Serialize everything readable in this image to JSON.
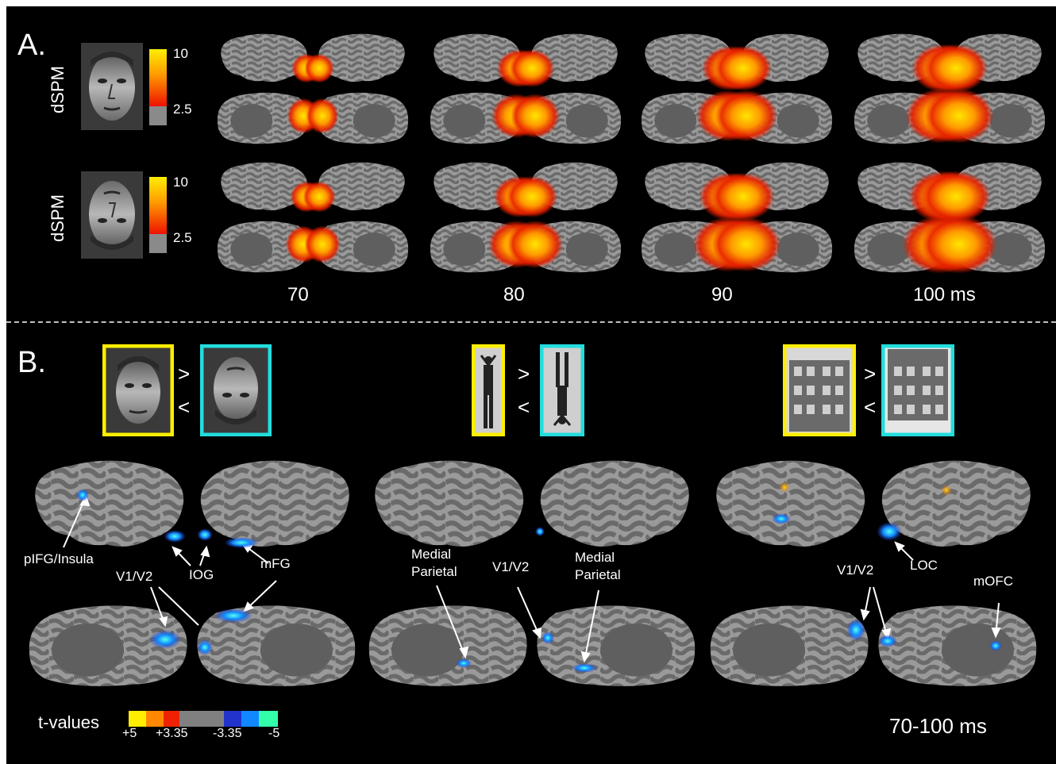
{
  "panel_a": {
    "label": "A.",
    "rows": [
      {
        "measure": "dSPM",
        "colorbar_max": "10",
        "colorbar_min": "2.5",
        "stimulus": "face-upright-photo"
      },
      {
        "measure": "dSPM",
        "colorbar_max": "10",
        "colorbar_min": "2.5",
        "stimulus": "face-inverted-photo"
      }
    ],
    "timepoints": [
      "70",
      "80",
      "90",
      "100 ms"
    ],
    "activation_level": [
      [
        0.2,
        0.45,
        0.65,
        0.75
      ],
      [
        0.25,
        0.55,
        0.75,
        0.85
      ]
    ]
  },
  "panel_b": {
    "label": "B.",
    "comparisons": [
      {
        "upright": "face-upright-photo",
        "inverted": "face-inverted-photo",
        "greater": ">",
        "less": "<"
      },
      {
        "upright": "body-upright-photo",
        "inverted": "body-inverted-photo",
        "greater": ">",
        "less": "<"
      },
      {
        "upright": "house-upright-photo",
        "inverted": "house-inverted-photo",
        "greater": ">",
        "less": "<"
      }
    ],
    "annotations": {
      "faces": [
        "pIFG/Insula",
        "IOG",
        "mFG",
        "V1/V2"
      ],
      "bodies_medial_parietal_1": [
        "Medial",
        "Parietal"
      ],
      "bodies_v1v2": "V1/V2",
      "bodies_medial_parietal_2": [
        "Medial",
        "Parietal"
      ],
      "houses": [
        "V1/V2",
        "LOC",
        "mOFC"
      ]
    },
    "colorbar": {
      "title": "t-values",
      "ticks": [
        "+5",
        "+3.35",
        "-3.35",
        "-5"
      ],
      "colors": [
        "#ffee00",
        "#ff8800",
        "#ee2200",
        "#808080",
        "#2233cc",
        "#1188ff",
        "#33ffaa"
      ]
    },
    "time_window": "70-100 ms"
  },
  "colors": {
    "background": "#000000",
    "cortex_light": "#9a9a9a",
    "cortex_dark": "#6a6a6a",
    "medial_wall": "#5f5f5f",
    "positive_strong": "#ffe600",
    "positive_weak": "#e82000",
    "negative_weak": "#2244dd",
    "negative_strong": "#33eecc",
    "frame_upright": "#ffee00",
    "frame_inverted": "#22dddd"
  }
}
